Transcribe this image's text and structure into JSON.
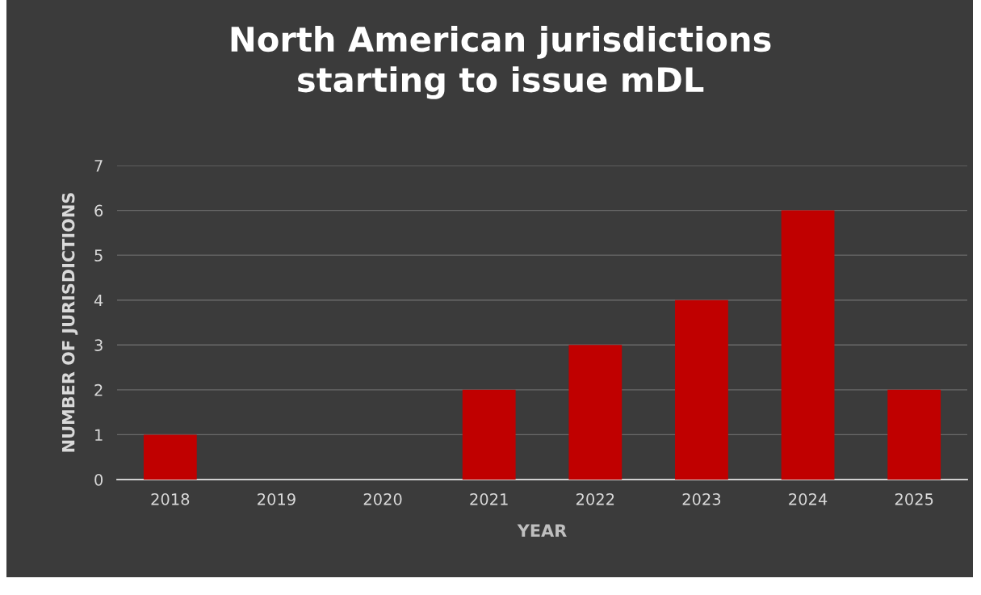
{
  "chart_data": {
    "type": "bar",
    "title": "North American jurisdictions\nstarting to issue mDL",
    "xlabel": "YEAR",
    "ylabel": "NUMBER OF JURISDICTIONS",
    "categories": [
      "2018",
      "2019",
      "2020",
      "2021",
      "2022",
      "2023",
      "2024",
      "2025"
    ],
    "values": [
      1,
      0,
      0,
      2,
      3,
      4,
      6,
      2
    ],
    "color": "#c00000",
    "ylim": [
      0,
      7
    ],
    "yticks": [
      0,
      1,
      2,
      3,
      4,
      5,
      6,
      7
    ],
    "grid": "y"
  }
}
